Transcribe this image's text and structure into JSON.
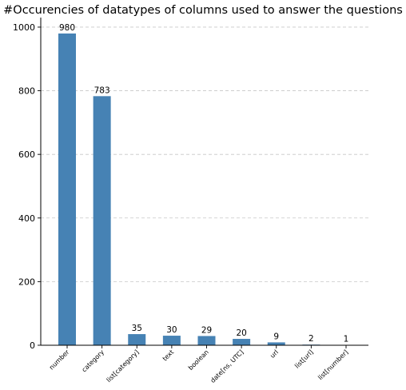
{
  "chart_data": {
    "type": "bar",
    "title": "#Occurencies of datatypes of columns used to answer the questions",
    "xlabel": "",
    "ylabel": "",
    "categories": [
      "number",
      "category",
      "list[category]",
      "text",
      "boolean",
      "date[ns, UTC]",
      "url",
      "list[url]",
      "list[number]"
    ],
    "values": [
      980,
      783,
      35,
      30,
      29,
      20,
      9,
      2,
      1
    ],
    "data_labels": [
      "980",
      "783",
      "35",
      "30",
      "29",
      "20",
      "9",
      "2",
      "1"
    ],
    "ylim": [
      0,
      1030
    ],
    "yticks": [
      0,
      200,
      400,
      600,
      800,
      1000
    ],
    "grid": "horizontal dashed",
    "bar_color": "#4682b4",
    "grid_color": "#c8c8c8"
  }
}
